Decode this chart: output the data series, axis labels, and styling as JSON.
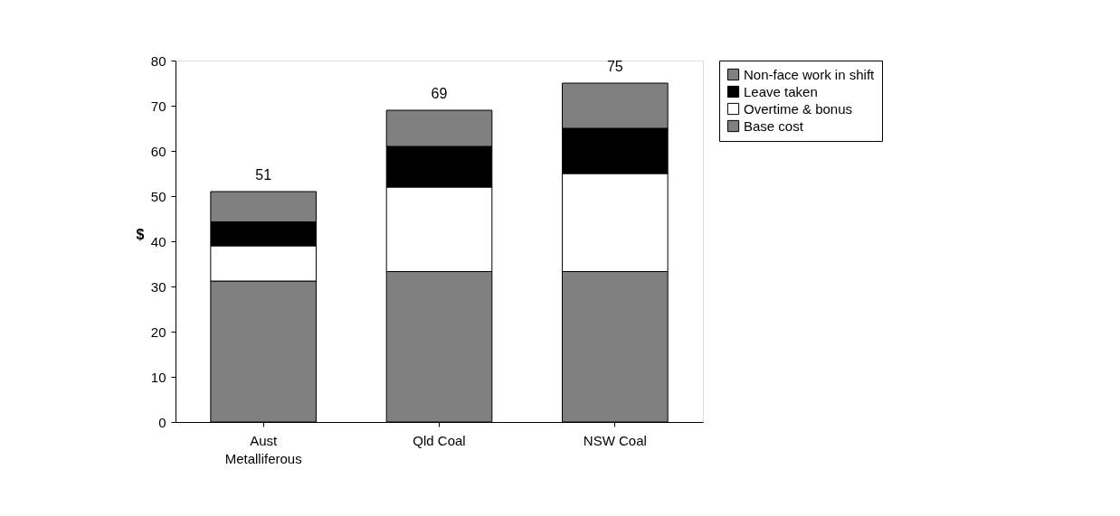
{
  "chart_data": {
    "type": "bar",
    "stacked": true,
    "ylabel": "$",
    "categories": [
      "Aust\nMetalliferous",
      "Qld Coal",
      "NSW Coal"
    ],
    "series": [
      {
        "name": "Base cost",
        "color": "#808080",
        "values": [
          31.2,
          33.3,
          33.3
        ]
      },
      {
        "name": "Overtime & bonus",
        "color": "#ffffff",
        "values": [
          7.8,
          18.7,
          21.7
        ]
      },
      {
        "name": "Leave taken",
        "color": "#000000",
        "values": [
          5.3,
          9,
          10
        ]
      },
      {
        "name": "Non-face work in shift",
        "color": "#808080",
        "values": [
          6.7,
          8,
          10
        ]
      }
    ],
    "totals": [
      "51",
      "69",
      "75"
    ],
    "ylim": [
      0,
      80
    ],
    "yticks": [
      0,
      10,
      20,
      30,
      40,
      50,
      60,
      70,
      80
    ],
    "grid": false,
    "legend": "right"
  }
}
